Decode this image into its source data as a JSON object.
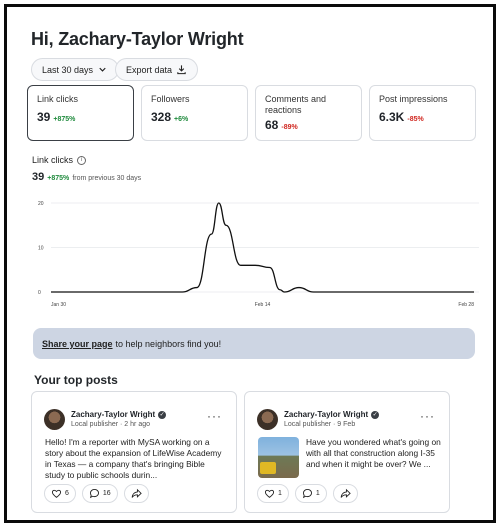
{
  "header": {
    "greeting": "Hi, Zachary-Taylor Wright"
  },
  "filters": {
    "range_label": "Last 30 days",
    "export_label": "Export data"
  },
  "stats": [
    {
      "label": "Link clicks",
      "value": "39",
      "change": "+875%",
      "trend": "up"
    },
    {
      "label": "Followers",
      "value": "328",
      "change": "+6%",
      "trend": "up"
    },
    {
      "label": "Comments and reactions",
      "value": "68",
      "change": "-89%",
      "trend": "down"
    },
    {
      "label": "Post impressions",
      "value": "6.3K",
      "change": "-85%",
      "trend": "down"
    }
  ],
  "section": {
    "title": "Link clicks",
    "info_icon": "i",
    "value": "39",
    "change": "+875%",
    "change_suffix": "from previous 30 days"
  },
  "chart_data": {
    "type": "line",
    "x_ticks": [
      "Jan 30",
      "Feb 14",
      "Feb 28"
    ],
    "y_ticks": [
      0,
      10,
      20
    ],
    "ylim": [
      0,
      20
    ],
    "x_range": [
      0,
      29
    ],
    "grid": true,
    "series": [
      {
        "points": [
          [
            0,
            0
          ],
          [
            1,
            0
          ],
          [
            2,
            0
          ],
          [
            3,
            0
          ],
          [
            4,
            0
          ],
          [
            5,
            0
          ],
          [
            6,
            0
          ],
          [
            7,
            0
          ],
          [
            8,
            0
          ],
          [
            9,
            0
          ],
          [
            10,
            1
          ],
          [
            11,
            13
          ],
          [
            11.5,
            20
          ],
          [
            12,
            15
          ],
          [
            13,
            6
          ],
          [
            14,
            6
          ],
          [
            15,
            5.5
          ],
          [
            15.7,
            0.5
          ],
          [
            16,
            0
          ],
          [
            17,
            1
          ],
          [
            18,
            0
          ],
          [
            19,
            0
          ],
          [
            20,
            0
          ],
          [
            21,
            0
          ],
          [
            22,
            0
          ],
          [
            23,
            0
          ],
          [
            24,
            0
          ],
          [
            25,
            0
          ],
          [
            26,
            0
          ],
          [
            27,
            0
          ],
          [
            28,
            0
          ],
          [
            29,
            0
          ]
        ],
        "color": "#111111"
      }
    ]
  },
  "banner": {
    "link_text": "Share your page",
    "text": "to help neighbors find you!"
  },
  "top_posts": {
    "title": "Your top posts",
    "posts": [
      {
        "author": "Zachary-Taylor Wright",
        "meta": "Local publisher · 2 hr ago",
        "body": "Hello! I'm a reporter with MySA working on a story about the expansion of LifeWise Academy in Texas — a company that's bringing Bible study to public schools durin...",
        "likes": "6",
        "comments": "16"
      },
      {
        "author": "Zachary-Taylor Wright",
        "meta": "Local publisher · 9 Feb",
        "body": "Have you wondered what's going on with all that construction along I-35 and when it might be over? We ...",
        "likes": "1",
        "comments": "1"
      }
    ]
  },
  "colors": {
    "positive": "#1e8a3c",
    "negative": "#d0261f",
    "banner": "#cdd5e3"
  }
}
